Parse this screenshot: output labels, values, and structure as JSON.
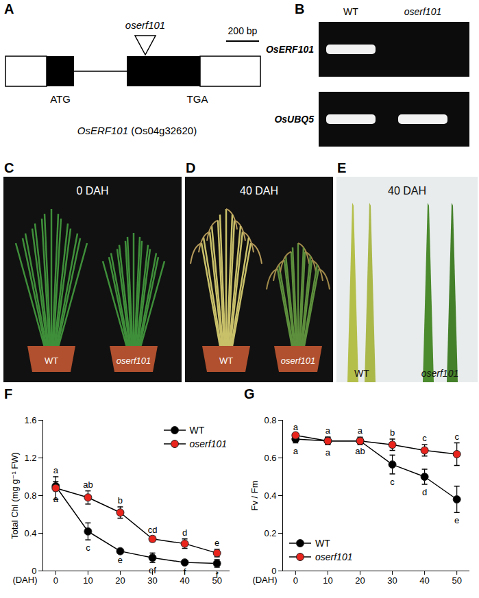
{
  "panels": {
    "A": {
      "label": "A",
      "insertion": "oserf101",
      "scale_bar": "200 bp",
      "start_codon": "ATG",
      "stop_codon": "TGA",
      "gene": "OsERF101",
      "locus": "(Os04g32620)"
    },
    "B": {
      "label": "B",
      "lanes": [
        "WT",
        "oserf101"
      ],
      "rows": [
        {
          "name": "OsERF101",
          "bands": [
            true,
            false
          ]
        },
        {
          "name": "OsUBQ5",
          "bands": [
            true,
            true
          ]
        }
      ]
    },
    "C": {
      "label": "C",
      "stage": "0 DAH",
      "genotypes": [
        "WT",
        "oserf101"
      ]
    },
    "D": {
      "label": "D",
      "stage": "40 DAH",
      "genotypes": [
        "WT",
        "oserf101"
      ]
    },
    "E": {
      "label": "E",
      "stage": "40 DAH",
      "genotypes": [
        "WT",
        "oserf101"
      ]
    }
  },
  "chart_data": [
    {
      "type": "line",
      "panel": "F",
      "ylabel": "Total Chl (mg g⁻¹ FW)",
      "xlabel": "(DAH)",
      "x": [
        0,
        10,
        20,
        30,
        40,
        50
      ],
      "xlim": [
        -4,
        54
      ],
      "xticks": [
        0,
        10,
        20,
        30,
        40,
        50
      ],
      "ylim": [
        0,
        1.6
      ],
      "yticks": [
        0,
        0.4,
        0.8,
        1.2,
        1.6
      ],
      "grid": false,
      "legend": "top-right",
      "series": [
        {
          "name": "WT",
          "color": "#000000",
          "marker": "circle",
          "line_style": "solid",
          "values": [
            0.9,
            0.42,
            0.21,
            0.14,
            0.09,
            0.08
          ],
          "error": [
            0.05,
            0.09,
            0.01,
            0.05,
            0.01,
            0.04
          ],
          "letters": [
            "a",
            "c",
            "e",
            "ef",
            "f",
            "f"
          ]
        },
        {
          "name": "oserf101",
          "color": "#e8241d",
          "marker": "circle",
          "line_style": "solid",
          "values": [
            0.88,
            0.78,
            0.62,
            0.34,
            0.29,
            0.19
          ],
          "error": [
            0.12,
            0.07,
            0.06,
            0.03,
            0.05,
            0.04
          ],
          "letters": [
            "a",
            "ab",
            "b",
            "cd",
            "d",
            "e"
          ]
        }
      ]
    },
    {
      "type": "line",
      "panel": "G",
      "ylabel": "Fv / Fm",
      "xlabel": "(DAH)",
      "x": [
        0,
        10,
        20,
        30,
        40,
        50
      ],
      "xlim": [
        -4,
        54
      ],
      "xticks": [
        0,
        10,
        20,
        30,
        40,
        50
      ],
      "ylim": [
        0,
        0.8
      ],
      "yticks": [
        0,
        0.2,
        0.4,
        0.6,
        0.8
      ],
      "grid": false,
      "legend": "bottom-left",
      "series": [
        {
          "name": "WT",
          "color": "#000000",
          "marker": "circle",
          "line_style": "solid",
          "values": [
            0.7,
            0.69,
            0.69,
            0.565,
            0.5,
            0.38
          ],
          "error": [
            0.02,
            0.02,
            0.01,
            0.05,
            0.04,
            0.07
          ],
          "letters": [
            "a",
            "a",
            "ab",
            "c",
            "d",
            "e"
          ]
        },
        {
          "name": "oserf101",
          "color": "#e8241d",
          "marker": "circle",
          "line_style": "solid",
          "values": [
            0.72,
            0.69,
            0.69,
            0.67,
            0.64,
            0.62
          ],
          "error": [
            0.01,
            0.02,
            0.02,
            0.03,
            0.03,
            0.06
          ],
          "letters": [
            "a",
            "a",
            "a",
            "b",
            "c",
            "c"
          ]
        }
      ]
    }
  ]
}
